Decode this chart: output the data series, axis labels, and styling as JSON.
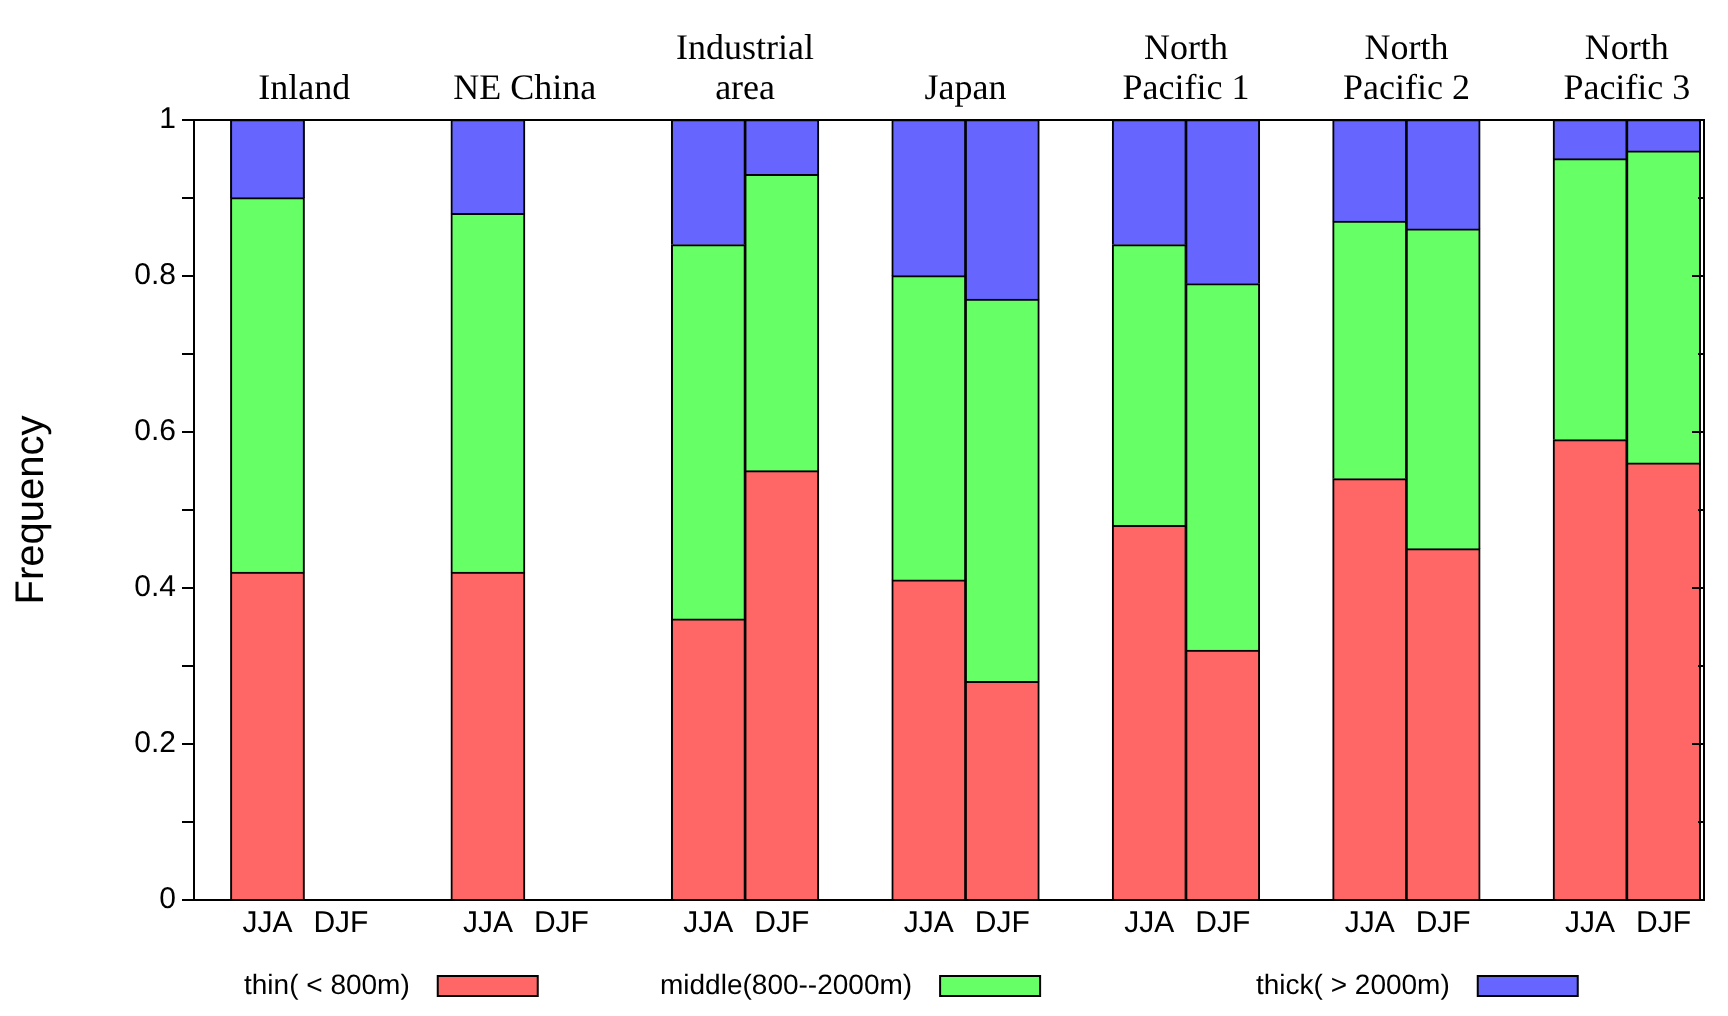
{
  "chart_data": {
    "type": "bar",
    "stacked": true,
    "ylabel": "Frequency",
    "categories": [
      "JJA",
      "DJF",
      "JJA",
      "DJF",
      "JJA",
      "DJF",
      "JJA",
      "DJF",
      "JJA",
      "DJF",
      "JJA",
      "DJF",
      "JJA",
      "DJF"
    ],
    "series": [
      {
        "name": "thin( < 800m)",
        "color": "#ff6666",
        "values": [
          0.42,
          0,
          0.42,
          0,
          0.36,
          0.55,
          0.41,
          0.28,
          0.48,
          0.32,
          0.54,
          0.45,
          0.59,
          0.56
        ]
      },
      {
        "name": "middle(800--2000m)",
        "color": "#66ff66",
        "values": [
          0.48,
          0,
          0.46,
          0,
          0.48,
          0.38,
          0.39,
          0.49,
          0.36,
          0.47,
          0.33,
          0.41,
          0.36,
          0.4
        ]
      },
      {
        "name": "thick( > 2000m)",
        "color": "#6666ff",
        "values": [
          0.1,
          0,
          0.12,
          0,
          0.16,
          0.07,
          0.2,
          0.23,
          0.16,
          0.21,
          0.13,
          0.14,
          0.05,
          0.04
        ]
      }
    ],
    "ylim": [
      0,
      1
    ],
    "yticks": [
      0,
      {
        "value": 0.1,
        "label": null
      },
      0.2,
      {
        "value": 0.3,
        "label": null
      },
      0.4,
      {
        "value": 0.5,
        "label": null
      },
      0.6,
      {
        "value": 0.7,
        "label": null
      },
      0.8,
      {
        "value": 0.9,
        "label": null
      },
      1
    ],
    "annotations": [
      "Inland",
      "NE China",
      "Industrial area",
      "Japan",
      "North Pacific 1",
      "North Pacific 2",
      "North Pacific 3"
    ],
    "legend": "bottom",
    "grid": false
  }
}
